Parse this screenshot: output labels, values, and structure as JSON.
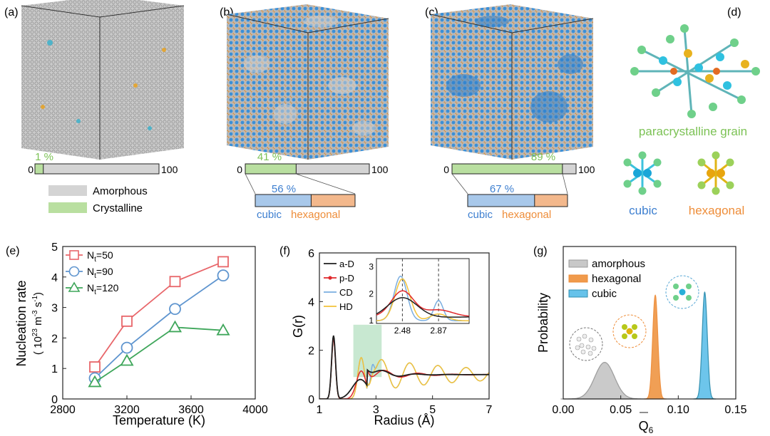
{
  "panel_labels": [
    "(a)",
    "(b)",
    "(c)",
    "(d)",
    "(e)",
    "(f)",
    "(g)"
  ],
  "colors": {
    "green": "#7cc255",
    "crystal_fill": "#b9dfa0",
    "amorphous_fill": "#d4d4d4",
    "cubic": "#3d7fd0",
    "cubic_fill": "#a8c8ea",
    "hexagonal": "#ee8d39",
    "hexagonal_fill": "#f3b88c"
  },
  "top": {
    "scale_min": "0",
    "scale_max": "100",
    "bars": [
      {
        "crystalline_percent": 1,
        "label": "1 %"
      },
      {
        "crystalline_percent": 41,
        "label": "41 %",
        "cubic_percent": 56,
        "cubic_label": "56 %"
      },
      {
        "crystalline_percent": 89,
        "label": "89 %",
        "cubic_percent": 67,
        "cubic_label": "67 %"
      }
    ],
    "cubic_label": "cubic",
    "hexagonal_label": "hexagonal",
    "legend": {
      "amorphous": "Amorphous",
      "crystalline": "Crystalline"
    },
    "d": {
      "grain_label": "paracrystalline grain",
      "cubic": "cubic",
      "hexagonal": "hexagonal"
    }
  },
  "chart_data": [
    {
      "panel": "(e)",
      "type": "line",
      "xlabel": "Temperature (K)",
      "ylabel_main": "Nucleation rate",
      "ylabel_units": "( 10",
      "ylabel_exp1": "23",
      "ylabel_mid": " m",
      "ylabel_exp2": "-3",
      "ylabel_mid2": " s",
      "ylabel_exp3": "-1",
      "ylabel_end": ")",
      "xlim": [
        2800,
        4000
      ],
      "ylim": [
        0,
        5
      ],
      "xticks": [
        2800,
        3200,
        3600,
        4000
      ],
      "yticks": [
        0,
        1,
        2,
        3,
        4,
        5
      ],
      "series": [
        {
          "name": "N",
          "sub": "t",
          "suffix": "=50",
          "marker": "square",
          "color": "#e8666a",
          "x": [
            3000,
            3200,
            3500,
            3800
          ],
          "y": [
            1.05,
            2.55,
            3.85,
            4.5
          ]
        },
        {
          "name": "N",
          "sub": "t",
          "suffix": "=90",
          "marker": "circle",
          "color": "#5f95cf",
          "x": [
            3000,
            3200,
            3500,
            3800
          ],
          "y": [
            0.68,
            1.68,
            2.95,
            4.05
          ]
        },
        {
          "name": "N",
          "sub": "t",
          "suffix": "=120",
          "marker": "triangle",
          "color": "#3ea65a",
          "x": [
            3000,
            3200,
            3500,
            3800
          ],
          "y": [
            0.55,
            1.25,
            2.35,
            2.25
          ]
        }
      ]
    },
    {
      "panel": "(f)",
      "type": "line",
      "xlabel": "Radius (Å)",
      "ylabel": "G(r)",
      "xlim": [
        1,
        7
      ],
      "ylim": [
        0,
        6
      ],
      "xticks": [
        1,
        3,
        5,
        7
      ],
      "yticks": [
        0,
        2,
        4,
        6
      ],
      "highlight_x": [
        2.2,
        3.2
      ],
      "series": [
        {
          "name": "a-D",
          "color": "#1f1f1f"
        },
        {
          "name": "p-D",
          "color": "#e0282c"
        },
        {
          "name": "CD",
          "color": "#7aaee0"
        },
        {
          "name": "HD",
          "color": "#f2c23a"
        }
      ],
      "inset": {
        "xlim": [
          2.2,
          3.2
        ],
        "ylim": [
          0.9,
          3.3
        ],
        "xticks": [
          "2.48",
          "2.87"
        ],
        "xtick_values": [
          2.48,
          2.87
        ],
        "yticks": [
          1,
          2,
          3
        ],
        "dashed_x": [
          2.48,
          2.87
        ]
      }
    },
    {
      "panel": "(g)",
      "type": "area",
      "ylabel": "Probability",
      "xlabel": "Q",
      "xlabel_sub": "6",
      "xlim": [
        0,
        0.15
      ],
      "xticks": [
        "0.00",
        "0.05",
        "0.10",
        "0.15"
      ],
      "xtick_values": [
        0,
        0.05,
        0.1,
        0.15
      ],
      "series": [
        {
          "name": "amorphous",
          "color": "#9a9a9a",
          "fill": "#c8c8c8",
          "mean": 0.036,
          "sigma": 0.0085,
          "peak": 0.24
        },
        {
          "name": "hexagonal",
          "color": "#ee8d39",
          "fill": "#f09a4c",
          "mean": 0.08,
          "sigma": 0.0022,
          "peak": 0.68
        },
        {
          "name": "cubic",
          "color": "#2f8fb0",
          "fill": "#66c2ea",
          "mean": 0.123,
          "sigma": 0.0022,
          "peak": 0.7
        }
      ]
    }
  ]
}
